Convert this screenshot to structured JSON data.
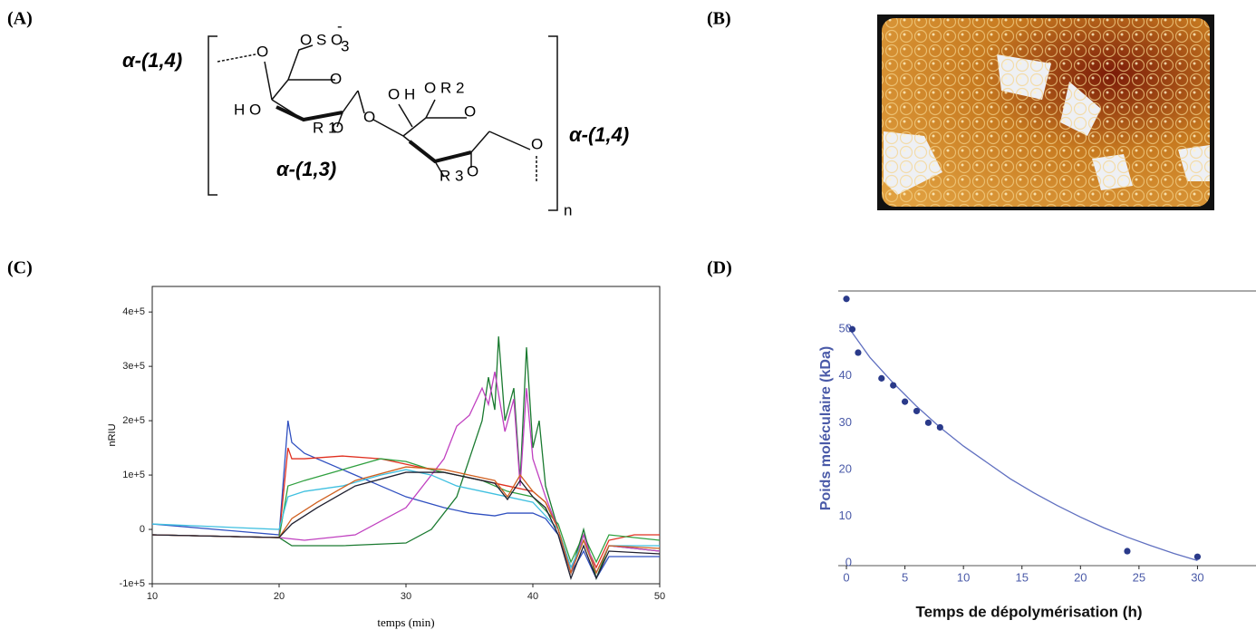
{
  "panels": [
    "(A)",
    "(B)",
    "(C)",
    "(D)"
  ],
  "structure": {
    "linkages": [
      "α-(1,4)",
      "α-(1,3)",
      "α-(1,4)"
    ],
    "atoms": [
      "O",
      "O S O",
      "3",
      "-",
      "O",
      "H O",
      "R 1",
      "O",
      "O",
      "O H",
      "O R 2",
      "O",
      "R 3",
      "O",
      "O",
      "n"
    ]
  },
  "chart_data": [
    {
      "type": "line",
      "xlabel": "temps (min)",
      "ylabel": "nRIU",
      "xlim": [
        10,
        50
      ],
      "xticks": [
        10,
        20,
        30,
        40,
        50
      ],
      "ylim": [
        -100000,
        447000
      ],
      "yticks": [
        {
          "value": -100000,
          "label": "-1e+5"
        },
        0,
        {
          "value": 100000,
          "label": "1e+5"
        },
        {
          "value": 200000,
          "label": "2e+5"
        },
        {
          "value": 300000,
          "label": "3e+5"
        },
        {
          "value": 400000,
          "label": "4e+5"
        }
      ],
      "series": [
        {
          "color": "#3050c0",
          "x": [
            10,
            20,
            20.7,
            21,
            22,
            25,
            28,
            30,
            33,
            35,
            37,
            38,
            40,
            41,
            42,
            43,
            44,
            45,
            46,
            48,
            50
          ],
          "values": [
            10000,
            -10000,
            200000,
            160000,
            140000,
            110000,
            80000,
            60000,
            40000,
            30000,
            25000,
            30000,
            30000,
            20000,
            -10000,
            -80000,
            -40000,
            -90000,
            -50000,
            -50000,
            -50000
          ]
        },
        {
          "color": "#e03020",
          "x": [
            10,
            20,
            20.7,
            21,
            22,
            25,
            28,
            30,
            32,
            34,
            36,
            38,
            40,
            41,
            42,
            43,
            44,
            45,
            46,
            48,
            50
          ],
          "values": [
            -10000,
            -15000,
            150000,
            130000,
            130000,
            135000,
            130000,
            120000,
            110000,
            100000,
            90000,
            80000,
            70000,
            50000,
            0,
            -70000,
            -20000,
            -70000,
            -20000,
            -10000,
            -10000
          ]
        },
        {
          "color": "#30a040",
          "x": [
            10,
            20,
            20.7,
            22,
            25,
            28,
            30,
            32,
            34,
            36,
            38,
            40,
            42,
            43,
            44,
            45,
            46,
            50
          ],
          "values": [
            -10000,
            -15000,
            80000,
            90000,
            110000,
            130000,
            125000,
            110000,
            100000,
            90000,
            70000,
            60000,
            10000,
            -60000,
            -10000,
            -60000,
            -10000,
            -20000
          ]
        },
        {
          "color": "#1a7a30",
          "x": [
            10,
            20,
            21,
            25,
            30,
            32,
            34,
            35,
            36,
            36.5,
            37,
            37.3,
            37.8,
            38.5,
            39,
            39.5,
            40,
            40.5,
            41,
            42,
            43,
            44,
            45,
            46,
            50
          ],
          "values": [
            -10000,
            -15000,
            -30000,
            -30000,
            -25000,
            0,
            60000,
            130000,
            200000,
            280000,
            220000,
            355000,
            200000,
            260000,
            90000,
            335000,
            150000,
            200000,
            80000,
            0,
            -80000,
            0,
            -90000,
            -30000,
            -40000
          ]
        },
        {
          "color": "#c040c0",
          "x": [
            10,
            20,
            22,
            26,
            30,
            33,
            34,
            35,
            36,
            36.5,
            37,
            37.8,
            38.5,
            39,
            39.5,
            40,
            41,
            42,
            43,
            44,
            45,
            46,
            50
          ],
          "values": [
            -10000,
            -15000,
            -20000,
            -10000,
            40000,
            130000,
            190000,
            210000,
            260000,
            230000,
            290000,
            180000,
            240000,
            80000,
            260000,
            130000,
            60000,
            0,
            -80000,
            -10000,
            -80000,
            -30000,
            -40000
          ]
        },
        {
          "color": "#40c0e0",
          "x": [
            10,
            20,
            20.7,
            22,
            25,
            28,
            30,
            32,
            34,
            36,
            38,
            40,
            42,
            43,
            44,
            45,
            46,
            50
          ],
          "values": [
            10000,
            0,
            60000,
            70000,
            80000,
            100000,
            110000,
            100000,
            80000,
            70000,
            60000,
            50000,
            0,
            -70000,
            -20000,
            -80000,
            -30000,
            -30000
          ]
        },
        {
          "color": "#d06020",
          "x": [
            10,
            20,
            21,
            23,
            26,
            30,
            33,
            35,
            37,
            38,
            39,
            40,
            41,
            42,
            43,
            44,
            45,
            46,
            50
          ],
          "values": [
            -10000,
            -15000,
            20000,
            50000,
            90000,
            115000,
            110000,
            100000,
            90000,
            60000,
            100000,
            70000,
            50000,
            0,
            -80000,
            -20000,
            -80000,
            -30000,
            -35000
          ]
        },
        {
          "color": "#202030",
          "x": [
            10,
            20,
            21,
            23,
            26,
            30,
            33,
            35,
            37,
            38,
            39,
            40,
            41,
            42,
            43,
            44,
            45,
            46,
            50
          ],
          "values": [
            -10000,
            -15000,
            10000,
            40000,
            80000,
            105000,
            105000,
            95000,
            85000,
            55000,
            90000,
            60000,
            40000,
            -10000,
            -90000,
            -30000,
            -90000,
            -40000,
            -45000
          ]
        }
      ]
    },
    {
      "type": "scatter",
      "xlabel": "Temps de dépolymérisation (h)",
      "ylabel": "Poids moléculaire (kDa)",
      "xlim": [
        -0.7,
        35
      ],
      "xticks": [
        0,
        5,
        10,
        15,
        20,
        25,
        30
      ],
      "ylim": [
        -0.6,
        58.2
      ],
      "yticks": [
        0,
        10,
        20,
        30,
        40,
        50
      ],
      "series": [
        {
          "color": "#2a3a8a",
          "line": false,
          "x": [
            0,
            0.5,
            1,
            3,
            4,
            5,
            6,
            7,
            8,
            24,
            30
          ],
          "values": [
            56.5,
            50,
            45,
            39.5,
            38,
            34.5,
            32.5,
            30,
            29,
            2.5,
            1.3
          ]
        },
        {
          "color": "#6070c0",
          "line": true,
          "x": [
            0,
            2,
            4,
            6,
            8,
            10,
            12,
            14,
            16,
            18,
            20,
            22,
            24,
            26,
            28,
            30
          ],
          "values": [
            51,
            44,
            38.5,
            33.5,
            29,
            25,
            21.5,
            18,
            15,
            12.3,
            9.8,
            7.5,
            5.5,
            3.7,
            2,
            0.5
          ]
        }
      ]
    }
  ]
}
